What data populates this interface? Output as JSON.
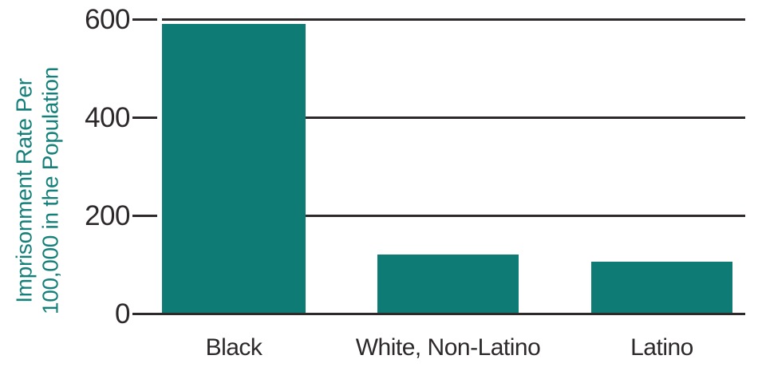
{
  "chart_data": {
    "type": "bar",
    "title": "",
    "categories": [
      "Black",
      "White, Non-Latino",
      "Latino"
    ],
    "values": [
      590,
      120,
      105
    ],
    "series": [
      {
        "name": "Imprisonment Rate",
        "values": [
          590,
          120,
          105
        ]
      }
    ],
    "xlabel": "",
    "ylabel": "Imprisonment Rate Per 100,000 in the Population",
    "ylabel_lines": [
      "Imprisonment Rate Per",
      "100,000 in the Population"
    ],
    "yticks": [
      600,
      400,
      200,
      0
    ],
    "ylim": [
      0,
      600
    ],
    "grid": "horizontal-only",
    "legend": "none",
    "colors": {
      "bar": "#0E7B74",
      "ylabel_text": "#15807A",
      "axis_text": "#2D292A",
      "gridline": "#2E2A2B",
      "background": "#FFFFFF"
    }
  }
}
